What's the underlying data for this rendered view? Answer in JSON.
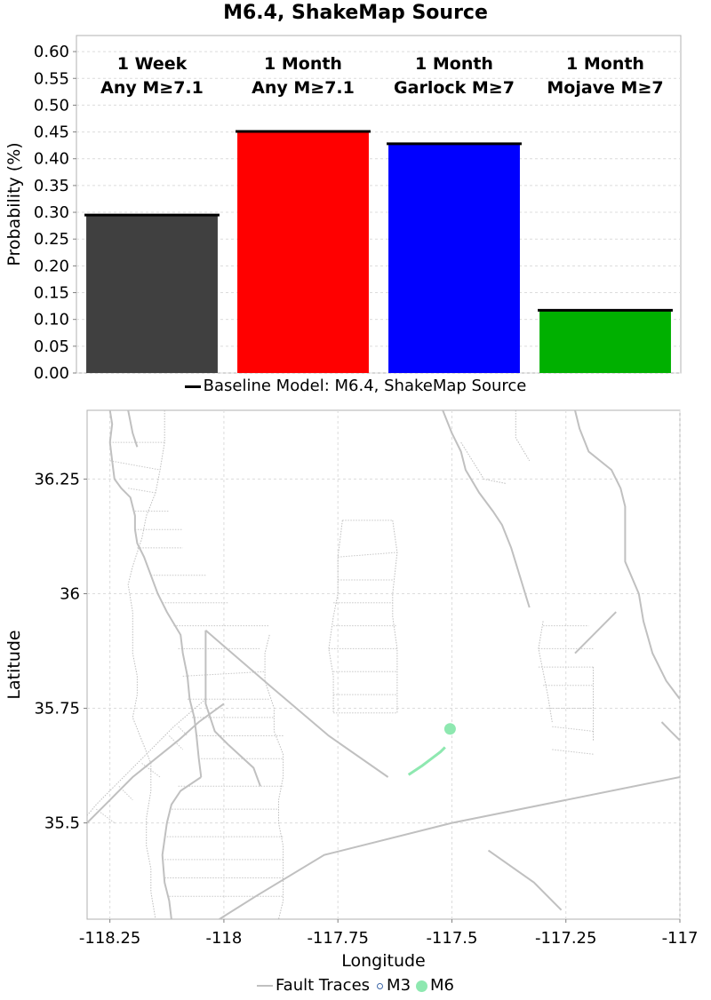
{
  "title": "M6.4, ShakeMap Source",
  "bar_legend_label": "Baseline Model: M6.4, ShakeMap Source",
  "map_legend": {
    "fault_label": "Fault Traces",
    "m3_label": "M3",
    "m6_label": "M6",
    "fault_color": "#c0c0c0",
    "m3_color": "#3f68a8",
    "m6_color": "#8ee8b0"
  },
  "chart_data": [
    {
      "type": "bar",
      "categories": [
        [
          "1 Week",
          "Any M≥7.1"
        ],
        [
          "1 Month",
          "Any M≥7.1"
        ],
        [
          "1 Month",
          "Garlock M≥7"
        ],
        [
          "1 Month",
          "Mojave M≥7"
        ]
      ],
      "series": [
        {
          "name": "Baseline Model: M6.4, ShakeMap Source",
          "values": [
            0.295,
            0.451,
            0.428,
            0.117
          ]
        }
      ],
      "colors": [
        "#404040",
        "#ff0000",
        "#0000ff",
        "#00b000"
      ],
      "ylabel": "Probability (%)",
      "ylim": [
        0,
        0.63
      ],
      "yticks": [
        "0.00",
        "0.05",
        "0.10",
        "0.15",
        "0.20",
        "0.25",
        "0.30",
        "0.35",
        "0.40",
        "0.45",
        "0.50",
        "0.55",
        "0.60"
      ],
      "grid": true,
      "legend_position": "bottom"
    },
    {
      "type": "scatter",
      "xlabel": "Longitude",
      "ylabel": "Latitude",
      "xlim": [
        -118.3,
        -117.0
      ],
      "ylim": [
        35.29,
        36.4
      ],
      "xticks": [
        "-118.25",
        "-118",
        "-117.75",
        "-117.5",
        "-117.25",
        "-117"
      ],
      "yticks": [
        "35.5",
        "35.75",
        "36",
        "36.25"
      ],
      "grid": true,
      "legend_position": "bottom",
      "solid_traces": [
        [
          [
            -118.25,
            36.4
          ],
          [
            -118.245,
            36.37
          ],
          [
            -118.25,
            36.33
          ],
          [
            -118.245,
            36.29
          ],
          [
            -118.24,
            36.25
          ],
          [
            -118.225,
            36.23
          ],
          [
            -118.205,
            36.21
          ],
          [
            -118.195,
            36.17
          ],
          [
            -118.195,
            36.14
          ],
          [
            -118.19,
            36.11
          ],
          [
            -118.175,
            36.08
          ],
          [
            -118.16,
            36.04
          ],
          [
            -118.145,
            36.0
          ],
          [
            -118.125,
            35.96
          ],
          [
            -118.095,
            35.91
          ],
          [
            -118.09,
            35.87
          ],
          [
            -118.08,
            35.82
          ],
          [
            -118.075,
            35.77
          ],
          [
            -118.065,
            35.73
          ],
          [
            -118.06,
            35.69
          ],
          [
            -118.055,
            35.64
          ],
          [
            -118.05,
            35.6
          ]
        ],
        [
          [
            -118.05,
            35.6
          ],
          [
            -118.095,
            35.57
          ],
          [
            -118.115,
            35.54
          ],
          [
            -118.125,
            35.5
          ],
          [
            -118.135,
            35.43
          ],
          [
            -118.13,
            35.37
          ],
          [
            -118.12,
            35.33
          ],
          [
            -118.115,
            35.29
          ]
        ],
        [
          [
            -118.21,
            36.4
          ],
          [
            -118.2,
            36.35
          ],
          [
            -118.19,
            36.32
          ]
        ],
        [
          [
            -118.04,
            35.92
          ],
          [
            -117.9,
            35.8
          ],
          [
            -117.77,
            35.69
          ],
          [
            -117.64,
            35.6
          ]
        ],
        [
          [
            -117.99,
            35.67
          ],
          [
            -117.935,
            35.62
          ],
          [
            -117.92,
            35.58
          ]
        ],
        [
          [
            -117.99,
            35.67
          ],
          [
            -118.02,
            35.7
          ],
          [
            -118.04,
            35.76
          ],
          [
            -118.04,
            35.92
          ]
        ],
        [
          [
            -118.3,
            35.5
          ],
          [
            -118.25,
            35.55
          ],
          [
            -118.2,
            35.6
          ],
          [
            -118.15,
            35.64
          ],
          [
            -118.1,
            35.68
          ],
          [
            -118.055,
            35.72
          ],
          [
            -118.0,
            35.76
          ]
        ],
        [
          [
            -118.01,
            35.29
          ],
          [
            -117.93,
            35.34
          ],
          [
            -117.78,
            35.43
          ],
          [
            -117.5,
            35.5
          ],
          [
            -117.25,
            35.55
          ],
          [
            -117.0,
            35.6
          ]
        ],
        [
          [
            -117.52,
            36.4
          ],
          [
            -117.5,
            36.35
          ],
          [
            -117.48,
            36.31
          ],
          [
            -117.47,
            36.27
          ],
          [
            -117.44,
            36.22
          ],
          [
            -117.41,
            36.18
          ],
          [
            -117.39,
            36.15
          ],
          [
            -117.37,
            36.1
          ],
          [
            -117.33,
            35.97
          ]
        ],
        [
          [
            -117.23,
            36.4
          ],
          [
            -117.22,
            36.36
          ],
          [
            -117.2,
            36.31
          ],
          [
            -117.15,
            36.27
          ],
          [
            -117.13,
            36.23
          ],
          [
            -117.12,
            36.19
          ],
          [
            -117.12,
            36.13
          ],
          [
            -117.12,
            36.07
          ],
          [
            -117.09,
            36.0
          ],
          [
            -117.08,
            35.94
          ],
          [
            -117.06,
            35.87
          ],
          [
            -117.03,
            35.81
          ],
          [
            -117.0,
            35.77
          ]
        ],
        [
          [
            -117.23,
            35.87
          ],
          [
            -117.18,
            35.92
          ],
          [
            -117.14,
            35.96
          ]
        ],
        [
          [
            -117.04,
            35.72
          ],
          [
            -117.02,
            35.7
          ],
          [
            -117.0,
            35.68
          ]
        ],
        [
          [
            -117.42,
            35.44
          ],
          [
            -117.32,
            35.37
          ],
          [
            -117.26,
            35.31
          ]
        ]
      ],
      "dotted_traces": [
        [
          [
            -118.13,
            36.4
          ],
          [
            -118.13,
            36.33
          ],
          [
            -118.14,
            36.27
          ],
          [
            -118.15,
            36.22
          ],
          [
            -118.17,
            36.17
          ],
          [
            -118.18,
            36.12
          ],
          [
            -118.2,
            36.06
          ],
          [
            -118.21,
            36.02
          ],
          [
            -118.2,
            35.96
          ],
          [
            -118.2,
            35.92
          ],
          [
            -118.2,
            35.87
          ],
          [
            -118.19,
            35.82
          ],
          [
            -118.19,
            35.78
          ],
          [
            -118.2,
            35.73
          ],
          [
            -118.18,
            35.68
          ],
          [
            -118.16,
            35.63
          ],
          [
            -118.16,
            35.57
          ],
          [
            -118.17,
            35.51
          ],
          [
            -118.17,
            35.45
          ],
          [
            -118.16,
            35.4
          ],
          [
            -118.16,
            35.35
          ],
          [
            -118.15,
            35.29
          ]
        ],
        [
          [
            -117.9,
            35.91
          ],
          [
            -117.91,
            35.87
          ],
          [
            -117.91,
            35.81
          ],
          [
            -117.89,
            35.75
          ],
          [
            -117.89,
            35.7
          ],
          [
            -117.87,
            35.65
          ],
          [
            -117.87,
            35.6
          ],
          [
            -117.88,
            35.55
          ],
          [
            -117.88,
            35.5
          ],
          [
            -117.87,
            35.45
          ],
          [
            -117.87,
            35.38
          ],
          [
            -117.87,
            35.33
          ],
          [
            -117.88,
            35.29
          ]
        ],
        [
          [
            -117.74,
            36.16
          ],
          [
            -117.75,
            36.08
          ],
          [
            -117.75,
            36.0
          ],
          [
            -117.76,
            35.95
          ],
          [
            -117.77,
            35.88
          ],
          [
            -117.76,
            35.82
          ],
          [
            -117.76,
            35.74
          ]
        ],
        [
          [
            -117.63,
            36.16
          ],
          [
            -117.62,
            36.09
          ],
          [
            -117.63,
            36.0
          ],
          [
            -117.63,
            35.95
          ],
          [
            -117.62,
            35.88
          ],
          [
            -117.62,
            35.74
          ]
        ],
        [
          [
            -117.3,
            35.94
          ],
          [
            -117.31,
            35.88
          ],
          [
            -117.3,
            35.83
          ],
          [
            -117.29,
            35.78
          ],
          [
            -117.28,
            35.72
          ]
        ],
        [
          [
            -117.19,
            35.84
          ],
          [
            -117.19,
            35.79
          ],
          [
            -117.19,
            35.74
          ],
          [
            -117.19,
            35.68
          ]
        ],
        [
          [
            -118.33,
            35.48
          ],
          [
            -118.28,
            35.54
          ],
          [
            -118.23,
            35.59
          ],
          [
            -118.17,
            35.65
          ],
          [
            -118.11,
            35.71
          ],
          [
            -118.04,
            35.77
          ]
        ],
        [
          [
            -117.48,
            36.33
          ],
          [
            -117.43,
            36.25
          ],
          [
            -117.38,
            36.24
          ]
        ],
        [
          [
            -117.36,
            36.4
          ],
          [
            -117.36,
            36.34
          ],
          [
            -117.33,
            36.29
          ]
        ]
      ],
      "rungs": [
        [
          [
            -118.25,
            36.33
          ],
          [
            -118.13,
            36.33
          ]
        ],
        [
          [
            -118.25,
            36.29
          ],
          [
            -118.14,
            36.27
          ]
        ],
        [
          [
            -118.21,
            36.23
          ],
          [
            -118.15,
            36.22
          ]
        ],
        [
          [
            -118.195,
            36.18
          ],
          [
            -118.12,
            36.18
          ]
        ],
        [
          [
            -118.195,
            36.14
          ],
          [
            -118.09,
            36.14
          ]
        ],
        [
          [
            -118.19,
            36.1
          ],
          [
            -118.09,
            36.1
          ]
        ],
        [
          [
            -118.16,
            36.04
          ],
          [
            -118.04,
            36.04
          ]
        ],
        [
          [
            -118.135,
            35.98
          ],
          [
            -117.99,
            35.98
          ]
        ],
        [
          [
            -118.11,
            35.93
          ],
          [
            -117.9,
            35.93
          ]
        ],
        [
          [
            -118.1,
            35.88
          ],
          [
            -117.92,
            35.88
          ]
        ],
        [
          [
            -118.09,
            35.82
          ],
          [
            -117.91,
            35.83
          ]
        ],
        [
          [
            -118.08,
            35.77
          ],
          [
            -117.9,
            35.77
          ]
        ],
        [
          [
            -118.07,
            35.73
          ],
          [
            -117.89,
            35.73
          ]
        ],
        [
          [
            -118.06,
            35.69
          ],
          [
            -117.87,
            35.69
          ]
        ],
        [
          [
            -118.05,
            35.64
          ],
          [
            -117.87,
            35.64
          ]
        ],
        [
          [
            -118.1,
            35.58
          ],
          [
            -117.87,
            35.58
          ]
        ],
        [
          [
            -118.12,
            35.53
          ],
          [
            -117.88,
            35.53
          ]
        ],
        [
          [
            -118.125,
            35.47
          ],
          [
            -117.87,
            35.47
          ]
        ],
        [
          [
            -118.13,
            35.42
          ],
          [
            -117.87,
            35.42
          ]
        ],
        [
          [
            -118.13,
            35.38
          ],
          [
            -117.87,
            35.38
          ]
        ],
        [
          [
            -118.12,
            35.34
          ],
          [
            -117.87,
            35.34
          ]
        ],
        [
          [
            -117.74,
            36.16
          ],
          [
            -117.63,
            36.16
          ]
        ],
        [
          [
            -117.75,
            36.08
          ],
          [
            -117.62,
            36.09
          ]
        ],
        [
          [
            -117.75,
            36.03
          ],
          [
            -117.63,
            36.03
          ]
        ],
        [
          [
            -117.76,
            35.98
          ],
          [
            -117.63,
            35.98
          ]
        ],
        [
          [
            -117.76,
            35.93
          ],
          [
            -117.62,
            35.93
          ]
        ],
        [
          [
            -117.77,
            35.88
          ],
          [
            -117.62,
            35.88
          ]
        ],
        [
          [
            -117.76,
            35.83
          ],
          [
            -117.62,
            35.83
          ]
        ],
        [
          [
            -117.76,
            35.78
          ],
          [
            -117.62,
            35.78
          ]
        ],
        [
          [
            -117.76,
            35.74
          ],
          [
            -117.62,
            35.74
          ]
        ],
        [
          [
            -117.3,
            35.93
          ],
          [
            -117.2,
            35.93
          ]
        ],
        [
          [
            -117.31,
            35.88
          ],
          [
            -117.19,
            35.88
          ]
        ],
        [
          [
            -117.31,
            35.84
          ],
          [
            -117.19,
            35.84
          ]
        ],
        [
          [
            -117.3,
            35.8
          ],
          [
            -117.19,
            35.8
          ]
        ],
        [
          [
            -117.29,
            35.75
          ],
          [
            -117.19,
            35.75
          ]
        ],
        [
          [
            -117.28,
            35.71
          ],
          [
            -117.19,
            35.7
          ]
        ],
        [
          [
            -117.28,
            35.66
          ],
          [
            -117.19,
            35.65
          ]
        ],
        [
          [
            -118.28,
            35.53
          ],
          [
            -118.24,
            35.5
          ]
        ],
        [
          [
            -118.23,
            35.58
          ],
          [
            -118.2,
            35.55
          ]
        ],
        [
          [
            -118.18,
            35.63
          ],
          [
            -118.14,
            35.6
          ]
        ],
        [
          [
            -118.12,
            35.69
          ],
          [
            -118.09,
            35.66
          ]
        ],
        [
          [
            -118.1,
            35.71
          ],
          [
            -118.08,
            35.69
          ]
        ]
      ],
      "rupture_trace": [
        [
          -117.595,
          35.605
        ],
        [
          -117.565,
          35.625
        ],
        [
          -117.545,
          35.64
        ],
        [
          -117.525,
          35.655
        ],
        [
          -117.515,
          35.665
        ]
      ],
      "epicenter": {
        "lon": -117.504,
        "lat": 35.705,
        "magnitude_class": "M6"
      }
    }
  ]
}
